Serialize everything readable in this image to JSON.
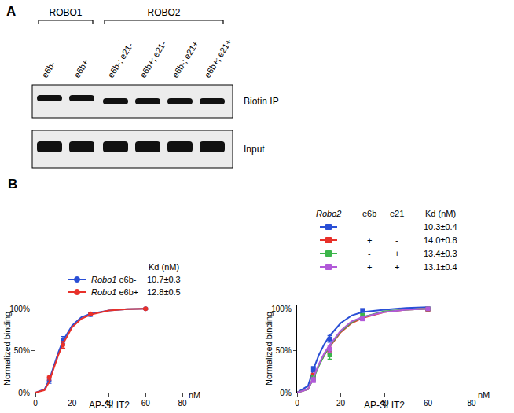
{
  "blot": {
    "label": "A",
    "groups": [
      {
        "name": "ROBO1",
        "lanes": [
          "e6b-",
          "e6b+"
        ]
      },
      {
        "name": "ROBO2",
        "lanes": [
          "e6b-; e21-",
          "e6b+; e21-",
          "e6b-; e21+",
          "e6b+; e21+"
        ]
      }
    ],
    "rows": [
      "Biotin IP",
      "Input"
    ]
  },
  "panel_label": "B",
  "chart_data": [
    {
      "type": "line",
      "x_label": "AP-SLIT2",
      "x_unit": "nM",
      "y_label": "Normalized binding",
      "xlim": [
        0,
        80
      ],
      "xticks": [
        0,
        20,
        40,
        60,
        80
      ],
      "ylim": [
        0,
        105
      ],
      "yticks": [
        {
          "value": 0,
          "label": "0%"
        },
        {
          "value": 50,
          "label": "50%"
        },
        {
          "value": 100,
          "label": "100%"
        }
      ],
      "marker": "circle",
      "legend_columns": [
        "Kd (nM)"
      ],
      "series": [
        {
          "gene": "Robo1",
          "variant": "e6b-",
          "kd": "10.7±0.3",
          "color": "#2a4fd6",
          "x": [
            7.5,
            15,
            30,
            60
          ],
          "values": [
            14,
            63,
            93,
            100
          ],
          "errors": [
            3,
            4,
            2,
            1
          ],
          "fit_x": [
            0,
            5,
            7.5,
            10,
            12.5,
            15,
            20,
            25,
            30,
            40,
            50,
            60
          ],
          "fit_values": [
            0,
            4,
            15,
            32,
            48,
            62,
            80,
            90,
            94,
            98,
            99.5,
            100
          ]
        },
        {
          "gene": "Robo1",
          "variant": "e6b+",
          "kd": "12.8±0.5",
          "color": "#e8312a",
          "x": [
            7.5,
            15,
            30,
            60
          ],
          "values": [
            18,
            57,
            94,
            100
          ],
          "errors": [
            3,
            4,
            2,
            1
          ],
          "fit_x": [
            0,
            5,
            7.5,
            10,
            12.5,
            15,
            20,
            25,
            30,
            40,
            50,
            60
          ],
          "fit_values": [
            0,
            3,
            13,
            29,
            45,
            58,
            78,
            88,
            93,
            98,
            99.5,
            100
          ]
        }
      ]
    },
    {
      "type": "line",
      "x_label": "AP-SLIT2",
      "x_unit": "nM",
      "y_label": "Normalized binding",
      "xlim": [
        0,
        80
      ],
      "xticks": [
        0,
        20,
        40,
        60,
        80
      ],
      "ylim": [
        0,
        105
      ],
      "yticks": [
        {
          "value": 0,
          "label": "0%"
        },
        {
          "value": 50,
          "label": "50%"
        },
        {
          "value": 100,
          "label": "100%"
        }
      ],
      "marker": "square",
      "legend_columns": [
        "Robo2",
        "e6b",
        "e21",
        "Kd (nM)"
      ],
      "series": [
        {
          "e6b": "-",
          "e21": "-",
          "kd": "10.3±0.4",
          "color": "#2a4fd6",
          "x": [
            7.5,
            15,
            30,
            60
          ],
          "values": [
            28,
            64,
            98,
            100
          ],
          "errors": [
            3,
            4,
            2,
            1
          ],
          "fit_x": [
            0,
            5,
            7.5,
            10,
            12.5,
            15,
            20,
            25,
            30,
            40,
            50,
            60
          ],
          "fit_values": [
            0,
            8,
            28,
            45,
            58,
            68,
            83,
            92,
            96,
            99,
            101,
            102
          ]
        },
        {
          "e6b": "+",
          "e21": "-",
          "kd": "14.0±0.8",
          "color": "#e8312a",
          "x": [
            7.5,
            15,
            30,
            60
          ],
          "values": [
            20,
            50,
            89,
            99
          ],
          "errors": [
            3,
            4,
            2,
            1
          ],
          "fit_x": [
            0,
            5,
            7.5,
            10,
            12.5,
            15,
            20,
            25,
            30,
            40,
            50,
            60
          ],
          "fit_values": [
            0,
            4,
            18,
            33,
            45,
            55,
            72,
            83,
            89,
            96,
            99,
            100
          ]
        },
        {
          "e6b": "-",
          "e21": "+",
          "kd": "13.4±0.3",
          "color": "#3cb54a",
          "x": [
            7.5,
            15,
            30,
            60
          ],
          "values": [
            17,
            45,
            92,
            100
          ],
          "errors": [
            3,
            5,
            2,
            1
          ],
          "fit_x": [
            0,
            5,
            7.5,
            10,
            12.5,
            15,
            20,
            25,
            30,
            40,
            50,
            60
          ],
          "fit_values": [
            0,
            4,
            17,
            32,
            45,
            56,
            73,
            84,
            90,
            97,
            99,
            100
          ]
        },
        {
          "e6b": "+",
          "e21": "+",
          "kd": "13.1±0.4",
          "color": "#b259d9",
          "x": [
            7.5,
            15,
            30,
            60
          ],
          "values": [
            15,
            52,
            88,
            100
          ],
          "errors": [
            3,
            4,
            2,
            1
          ],
          "fit_x": [
            0,
            5,
            7.5,
            10,
            12.5,
            15,
            20,
            25,
            30,
            40,
            50,
            60
          ],
          "fit_values": [
            0,
            4,
            18,
            34,
            47,
            57,
            74,
            85,
            90,
            96,
            99,
            100
          ]
        }
      ]
    }
  ]
}
